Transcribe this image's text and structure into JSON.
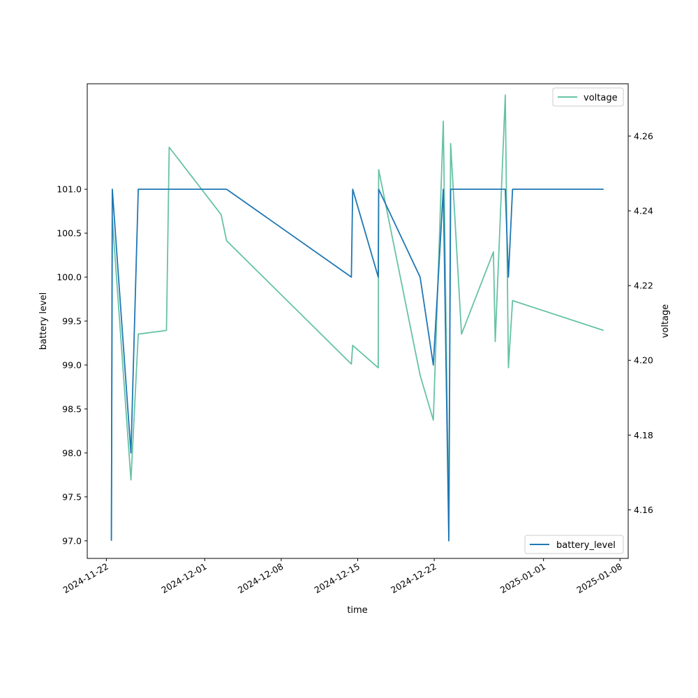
{
  "chart_data": {
    "type": "line",
    "xlabel": "time",
    "ylabel_left": "battery level",
    "ylabel_right": "voltage",
    "x_ticks": [
      "2024-11-22",
      "2024-12-01",
      "2024-12-08",
      "2024-12-15",
      "2024-12-22",
      "2025-01-01",
      "2025-01-08"
    ],
    "y_left_ticks": [
      "97.0",
      "97.5",
      "98.0",
      "98.5",
      "99.0",
      "99.5",
      "100.0",
      "100.5",
      "101.0"
    ],
    "y_right_ticks": [
      "4.16",
      "4.18",
      "4.20",
      "4.22",
      "4.24",
      "4.26"
    ],
    "xlim": [
      "2024-11-20 06:00",
      "2025-01-08 18:00"
    ],
    "y_left_lim": [
      96.8,
      102.2
    ],
    "y_right_lim": [
      4.147,
      4.274
    ],
    "grid": false,
    "legend": [
      {
        "name": "voltage",
        "axis": "right",
        "placement": "top-right"
      },
      {
        "name": "battery_level",
        "axis": "left",
        "placement": "bottom-right"
      }
    ],
    "series": [
      {
        "name": "battery_level",
        "axis": "left",
        "color": "#1f77b4",
        "points": [
          [
            "2024-11-22 11:00",
            97.0
          ],
          [
            "2024-11-22 13:00",
            101.0
          ],
          [
            "2024-11-24 06:00",
            98.0
          ],
          [
            "2024-11-24 22:00",
            101.0
          ],
          [
            "2024-12-03 00:00",
            101.0
          ],
          [
            "2024-12-14 10:00",
            100.0
          ],
          [
            "2024-12-14 13:00",
            101.0
          ],
          [
            "2024-12-16 21:00",
            100.0
          ],
          [
            "2024-12-16 22:00",
            101.0
          ],
          [
            "2024-12-20 17:00",
            100.0
          ],
          [
            "2024-12-21 22:00",
            99.0
          ],
          [
            "2024-12-22 20:00",
            101.0
          ],
          [
            "2024-12-23 08:00",
            97.0
          ],
          [
            "2024-12-23 12:00",
            101.0
          ],
          [
            "2024-12-28 12:00",
            101.0
          ],
          [
            "2024-12-28 19:00",
            100.0
          ],
          [
            "2024-12-29 04:00",
            101.0
          ],
          [
            "2025-01-06 12:00",
            101.0
          ]
        ]
      },
      {
        "name": "voltage",
        "axis": "right",
        "color": "#66c2a5",
        "points": [
          [
            "2024-11-22 11:00",
            4.152
          ],
          [
            "2024-11-22 13:00",
            4.238
          ],
          [
            "2024-11-24 06:00",
            4.168
          ],
          [
            "2024-11-24 22:00",
            4.207
          ],
          [
            "2024-11-27 12:00",
            4.208
          ],
          [
            "2024-11-27 18:00",
            4.257
          ],
          [
            "2024-12-02 12:00",
            4.239
          ],
          [
            "2024-12-03 00:00",
            4.232
          ],
          [
            "2024-12-14 10:00",
            4.199
          ],
          [
            "2024-12-14 13:00",
            4.204
          ],
          [
            "2024-12-16 21:00",
            4.198
          ],
          [
            "2024-12-16 22:00",
            4.251
          ],
          [
            "2024-12-20 17:00",
            4.196
          ],
          [
            "2024-12-21 22:00",
            4.184
          ],
          [
            "2024-12-22 20:00",
            4.264
          ],
          [
            "2024-12-23 08:00",
            4.154
          ],
          [
            "2024-12-23 12:00",
            4.258
          ],
          [
            "2024-12-24 12:00",
            4.207
          ],
          [
            "2024-12-27 10:00",
            4.229
          ],
          [
            "2024-12-27 14:00",
            4.205
          ],
          [
            "2024-12-28 12:00",
            4.271
          ],
          [
            "2024-12-28 19:00",
            4.198
          ],
          [
            "2024-12-29 04:00",
            4.216
          ],
          [
            "2025-01-06 12:00",
            4.208
          ]
        ]
      }
    ]
  }
}
